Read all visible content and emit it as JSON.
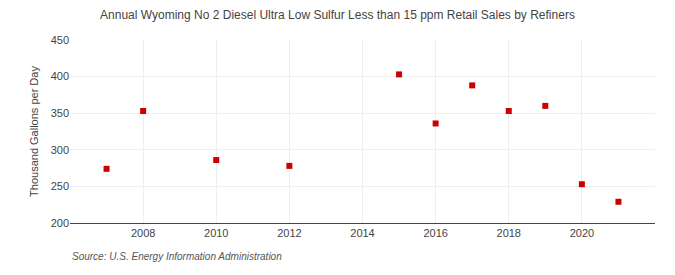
{
  "chart_data": {
    "type": "scatter",
    "title": "Annual Wyoming No 2 Diesel Ultra Low Sulfur Less than 15 ppm Retail Sales by Refiners",
    "ylabel": "Thousand Gallons per Day",
    "annotations": [
      "Source: U.S. Energy Information Administration"
    ],
    "x": [
      2007,
      2008,
      2010,
      2012,
      2015,
      2016,
      2017,
      2018,
      2019,
      2020,
      2021
    ],
    "values": [
      274,
      353,
      286,
      278,
      403,
      336,
      388,
      353,
      360,
      253,
      229
    ],
    "color": "#cc0000",
    "marker": "square",
    "xlim": [
      2006.0,
      2022.0
    ],
    "ylim": [
      200,
      450
    ],
    "yticks": [
      200,
      250,
      300,
      350,
      400,
      450
    ],
    "xticks": [
      2008,
      2010,
      2012,
      2014,
      2016,
      2018,
      2020
    ],
    "grid": true
  }
}
